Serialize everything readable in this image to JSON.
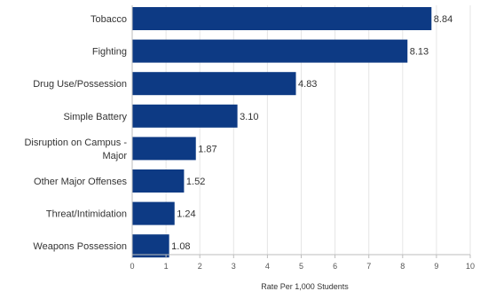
{
  "chart_data": {
    "type": "bar",
    "orientation": "horizontal",
    "categories": [
      "Tobacco",
      "Fighting",
      "Drug Use/Possession",
      "Simple Battery",
      "Disruption on Campus - Major",
      "Other Major Offenses",
      "Threat/Intimidation",
      "Weapons Possession"
    ],
    "category_lines": [
      [
        "Tobacco"
      ],
      [
        "Fighting"
      ],
      [
        "Drug Use/Possession"
      ],
      [
        "Simple Battery"
      ],
      [
        "Disruption on Campus -",
        "Major"
      ],
      [
        "Other Major Offenses"
      ],
      [
        "Threat/Intimidation"
      ],
      [
        "Weapons Possession"
      ]
    ],
    "values": [
      8.84,
      8.13,
      4.83,
      3.1,
      1.87,
      1.52,
      1.24,
      1.08
    ],
    "value_labels": [
      "8.84",
      "8.13",
      "4.83",
      "3.10",
      "1.87",
      "1.52",
      "1.24",
      "1.08"
    ],
    "xlabel": "Rate Per 1,000 Students",
    "ylabel": "",
    "xlim": [
      0,
      10
    ],
    "xticks": [
      0,
      1,
      2,
      3,
      4,
      5,
      6,
      7,
      8,
      9,
      10
    ],
    "grid": true,
    "bar_color": "#0d3a84"
  }
}
